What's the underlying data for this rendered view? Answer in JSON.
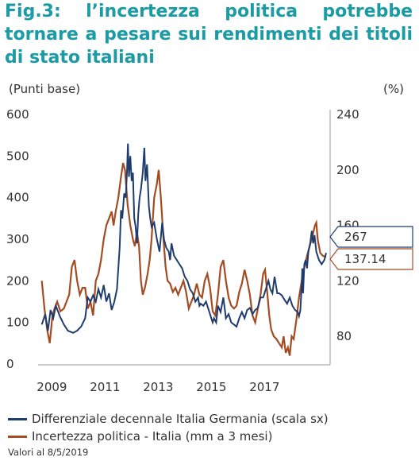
{
  "title": "Fig.3: l’incertezza politica potrebbe tornare a pesare sui rendimenti dei titoli di stato italiani",
  "left_unit": "(Punti base)",
  "right_unit": "(%)",
  "note": "Valori al 8/5/2019",
  "colors": {
    "title": "#1a9ba5",
    "spread": "#1f3c6e",
    "uncertainty": "#a34c22"
  },
  "chart_data": {
    "type": "line",
    "x_ticks": [
      "2009",
      "2011",
      "2013",
      "2015",
      "2017"
    ],
    "xlim": [
      2008.6,
      2019.35
    ],
    "left_axis": {
      "ticks": [
        "0",
        "100",
        "200",
        "300",
        "400",
        "500",
        "600"
      ],
      "ylim": [
        0,
        600
      ]
    },
    "right_axis": {
      "ticks": [
        "80",
        "120",
        "160",
        "200",
        "240"
      ],
      "ylim": [
        60,
        240
      ]
    },
    "series": [
      {
        "name": "Differenziale decennale Italia Germania (scala sx)",
        "axis": "left",
        "last_value_label": "267",
        "points": [
          [
            2008.62,
            95
          ],
          [
            2008.75,
            120
          ],
          [
            2008.85,
            80
          ],
          [
            2008.95,
            130
          ],
          [
            2009.05,
            110
          ],
          [
            2009.15,
            140
          ],
          [
            2009.3,
            115
          ],
          [
            2009.45,
            95
          ],
          [
            2009.6,
            80
          ],
          [
            2009.8,
            75
          ],
          [
            2009.95,
            80
          ],
          [
            2010.1,
            90
          ],
          [
            2010.25,
            110
          ],
          [
            2010.35,
            160
          ],
          [
            2010.45,
            150
          ],
          [
            2010.55,
            165
          ],
          [
            2010.65,
            150
          ],
          [
            2010.75,
            180
          ],
          [
            2010.85,
            160
          ],
          [
            2010.95,
            190
          ],
          [
            2011.05,
            150
          ],
          [
            2011.15,
            170
          ],
          [
            2011.25,
            130
          ],
          [
            2011.35,
            150
          ],
          [
            2011.45,
            180
          ],
          [
            2011.5,
            230
          ],
          [
            2011.55,
            280
          ],
          [
            2011.6,
            370
          ],
          [
            2011.65,
            350
          ],
          [
            2011.72,
            410
          ],
          [
            2011.78,
            400
          ],
          [
            2011.83,
            470
          ],
          [
            2011.86,
            530
          ],
          [
            2011.9,
            450
          ],
          [
            2011.95,
            500
          ],
          [
            2012.0,
            440
          ],
          [
            2012.05,
            460
          ],
          [
            2012.1,
            350
          ],
          [
            2012.15,
            330
          ],
          [
            2012.2,
            290
          ],
          [
            2012.25,
            360
          ],
          [
            2012.3,
            400
          ],
          [
            2012.35,
            420
          ],
          [
            2012.42,
            460
          ],
          [
            2012.48,
            520
          ],
          [
            2012.52,
            440
          ],
          [
            2012.58,
            480
          ],
          [
            2012.65,
            380
          ],
          [
            2012.7,
            350
          ],
          [
            2012.75,
            330
          ],
          [
            2012.85,
            340
          ],
          [
            2012.95,
            300
          ],
          [
            2013.05,
            270
          ],
          [
            2013.15,
            340
          ],
          [
            2013.22,
            300
          ],
          [
            2013.3,
            280
          ],
          [
            2013.4,
            270
          ],
          [
            2013.45,
            250
          ],
          [
            2013.5,
            290
          ],
          [
            2013.6,
            260
          ],
          [
            2013.7,
            250
          ],
          [
            2013.8,
            240
          ],
          [
            2013.9,
            230
          ],
          [
            2014.0,
            210
          ],
          [
            2014.1,
            200
          ],
          [
            2014.2,
            180
          ],
          [
            2014.3,
            170
          ],
          [
            2014.4,
            150
          ],
          [
            2014.5,
            160
          ],
          [
            2014.55,
            140
          ],
          [
            2014.6,
            145
          ],
          [
            2014.7,
            140
          ],
          [
            2014.8,
            150
          ],
          [
            2014.9,
            130
          ],
          [
            2015.0,
            110
          ],
          [
            2015.05,
            100
          ],
          [
            2015.1,
            110
          ],
          [
            2015.18,
            100
          ],
          [
            2015.25,
            140
          ],
          [
            2015.35,
            125
          ],
          [
            2015.45,
            160
          ],
          [
            2015.55,
            110
          ],
          [
            2015.65,
            120
          ],
          [
            2015.75,
            100
          ],
          [
            2015.85,
            95
          ],
          [
            2015.95,
            90
          ],
          [
            2016.05,
            110
          ],
          [
            2016.15,
            125
          ],
          [
            2016.25,
            110
          ],
          [
            2016.35,
            130
          ],
          [
            2016.45,
            135
          ],
          [
            2016.55,
            120
          ],
          [
            2016.65,
            130
          ],
          [
            2016.75,
            135
          ],
          [
            2016.85,
            160
          ],
          [
            2016.95,
            160
          ],
          [
            2017.05,
            180
          ],
          [
            2017.15,
            200
          ],
          [
            2017.22,
            180
          ],
          [
            2017.3,
            170
          ],
          [
            2017.38,
            210
          ],
          [
            2017.48,
            170
          ],
          [
            2017.55,
            170
          ],
          [
            2017.65,
            165
          ],
          [
            2017.75,
            155
          ],
          [
            2017.85,
            145
          ],
          [
            2017.95,
            160
          ],
          [
            2018.05,
            140
          ],
          [
            2018.15,
            130
          ],
          [
            2018.25,
            125
          ],
          [
            2018.3,
            115
          ],
          [
            2018.35,
            130
          ],
          [
            2018.4,
            190
          ],
          [
            2018.42,
            230
          ],
          [
            2018.45,
            170
          ],
          [
            2018.5,
            240
          ],
          [
            2018.55,
            250
          ],
          [
            2018.6,
            230
          ],
          [
            2018.65,
            270
          ],
          [
            2018.72,
            290
          ],
          [
            2018.78,
            320
          ],
          [
            2018.83,
            290
          ],
          [
            2018.88,
            310
          ],
          [
            2018.95,
            270
          ],
          [
            2019.05,
            250
          ],
          [
            2019.15,
            240
          ],
          [
            2019.25,
            250
          ],
          [
            2019.32,
            267
          ]
        ]
      },
      {
        "name": "Incertezza politica - Italia (mm a 3 mesi)",
        "axis": "right",
        "last_value_label": "137.14",
        "points": [
          [
            2008.62,
            120
          ],
          [
            2008.72,
            100
          ],
          [
            2008.82,
            85
          ],
          [
            2008.92,
            75
          ],
          [
            2009.02,
            95
          ],
          [
            2009.1,
            100
          ],
          [
            2009.2,
            105
          ],
          [
            2009.32,
            98
          ],
          [
            2009.45,
            100
          ],
          [
            2009.55,
            105
          ],
          [
            2009.65,
            110
          ],
          [
            2009.75,
            130
          ],
          [
            2009.85,
            135
          ],
          [
            2009.95,
            120
          ],
          [
            2010.05,
            110
          ],
          [
            2010.15,
            115
          ],
          [
            2010.25,
            115
          ],
          [
            2010.35,
            100
          ],
          [
            2010.45,
            105
          ],
          [
            2010.55,
            95
          ],
          [
            2010.65,
            120
          ],
          [
            2010.75,
            125
          ],
          [
            2010.85,
            135
          ],
          [
            2010.95,
            150
          ],
          [
            2011.05,
            160
          ],
          [
            2011.15,
            165
          ],
          [
            2011.25,
            170
          ],
          [
            2011.32,
            160
          ],
          [
            2011.4,
            170
          ],
          [
            2011.5,
            180
          ],
          [
            2011.6,
            195
          ],
          [
            2011.68,
            205
          ],
          [
            2011.75,
            200
          ],
          [
            2011.85,
            175
          ],
          [
            2011.95,
            160
          ],
          [
            2012.05,
            150
          ],
          [
            2012.12,
            145
          ],
          [
            2012.2,
            155
          ],
          [
            2012.28,
            145
          ],
          [
            2012.35,
            120
          ],
          [
            2012.42,
            110
          ],
          [
            2012.5,
            115
          ],
          [
            2012.6,
            125
          ],
          [
            2012.68,
            135
          ],
          [
            2012.75,
            150
          ],
          [
            2012.85,
            180
          ],
          [
            2012.95,
            190
          ],
          [
            2013.02,
            200
          ],
          [
            2013.1,
            180
          ],
          [
            2013.2,
            150
          ],
          [
            2013.28,
            130
          ],
          [
            2013.35,
            120
          ],
          [
            2013.45,
            118
          ],
          [
            2013.55,
            112
          ],
          [
            2013.65,
            115
          ],
          [
            2013.75,
            110
          ],
          [
            2013.85,
            115
          ],
          [
            2013.95,
            120
          ],
          [
            2014.05,
            112
          ],
          [
            2014.15,
            100
          ],
          [
            2014.25,
            105
          ],
          [
            2014.35,
            110
          ],
          [
            2014.45,
            118
          ],
          [
            2014.55,
            110
          ],
          [
            2014.65,
            108
          ],
          [
            2014.75,
            120
          ],
          [
            2014.85,
            125
          ],
          [
            2014.95,
            115
          ],
          [
            2015.05,
            98
          ],
          [
            2015.15,
            95
          ],
          [
            2015.25,
            110
          ],
          [
            2015.35,
            130
          ],
          [
            2015.45,
            135
          ],
          [
            2015.55,
            120
          ],
          [
            2015.65,
            108
          ],
          [
            2015.75,
            102
          ],
          [
            2015.85,
            100
          ],
          [
            2015.95,
            102
          ],
          [
            2016.05,
            112
          ],
          [
            2016.15,
            118
          ],
          [
            2016.25,
            128
          ],
          [
            2016.35,
            120
          ],
          [
            2016.45,
            110
          ],
          [
            2016.55,
            95
          ],
          [
            2016.65,
            90
          ],
          [
            2016.75,
            100
          ],
          [
            2016.85,
            110
          ],
          [
            2016.95,
            125
          ],
          [
            2017.02,
            128
          ],
          [
            2017.1,
            112
          ],
          [
            2017.18,
            95
          ],
          [
            2017.25,
            85
          ],
          [
            2017.35,
            80
          ],
          [
            2017.45,
            78
          ],
          [
            2017.55,
            75
          ],
          [
            2017.65,
            72
          ],
          [
            2017.72,
            80
          ],
          [
            2017.8,
            68
          ],
          [
            2017.88,
            72
          ],
          [
            2017.95,
            66
          ],
          [
            2018.02,
            80
          ],
          [
            2018.1,
            78
          ],
          [
            2018.2,
            92
          ],
          [
            2018.3,
            108
          ],
          [
            2018.4,
            120
          ],
          [
            2018.5,
            130
          ],
          [
            2018.6,
            138
          ],
          [
            2018.7,
            145
          ],
          [
            2018.8,
            152
          ],
          [
            2018.9,
            160
          ],
          [
            2018.95,
            162
          ],
          [
            2019.0,
            150
          ],
          [
            2019.1,
            140
          ],
          [
            2019.2,
            138
          ],
          [
            2019.32,
            137.14
          ]
        ]
      }
    ]
  }
}
